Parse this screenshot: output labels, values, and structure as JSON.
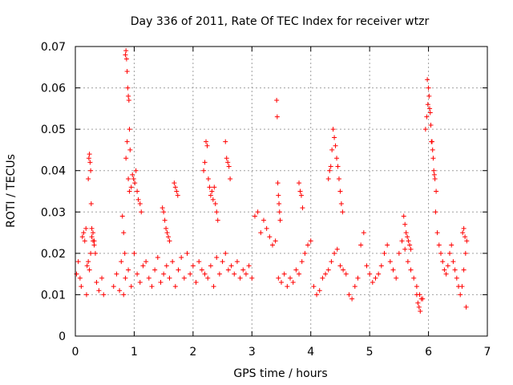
{
  "chart_data": {
    "type": "scatter",
    "title": "Day 336 of 2011, Rate Of TEC Index for receiver wtzr",
    "xlabel": "GPS time / hours",
    "ylabel": "ROTI / TECUs",
    "xlim": [
      0,
      7
    ],
    "ylim": [
      0,
      0.07
    ],
    "x_ticks": [
      0,
      1,
      2,
      3,
      4,
      5,
      6,
      7
    ],
    "y_ticks": [
      0,
      0.01,
      0.02,
      0.03,
      0.04,
      0.05,
      0.06,
      0.07
    ],
    "x_tick_labels": [
      "0",
      "1",
      "2",
      "3",
      "4",
      "5",
      "6",
      "7"
    ],
    "y_tick_labels": [
      "0",
      "0.01",
      "0.02",
      "0.03",
      "0.04",
      "0.05",
      "0.06",
      "0.07"
    ],
    "grid": true,
    "marker": "plus",
    "marker_color": "#ff0000",
    "series": [
      {
        "x": [
          0.02,
          0.05,
          0.08,
          0.1,
          0.12,
          0.14,
          0.16,
          0.18,
          0.19,
          0.2,
          0.22,
          0.24,
          0.26,
          0.28,
          0.3,
          0.32,
          0.34,
          0.36,
          0.4,
          0.45,
          0.48,
          0.22,
          0.23,
          0.24,
          0.25,
          0.26,
          0.27,
          0.28,
          0.3,
          0.32,
          0.85,
          0.86,
          0.87,
          0.88,
          0.89,
          0.9,
          0.91,
          0.92,
          0.93,
          0.8,
          0.82,
          0.84,
          0.86,
          0.88,
          0.9,
          0.92,
          0.95,
          0.97,
          0.99,
          1.01,
          1.03,
          1.05,
          1.07,
          1.1,
          1.12,
          0.65,
          0.7,
          0.75,
          0.78,
          0.82,
          0.85,
          0.9,
          0.95,
          1.0,
          1.05,
          1.1,
          1.15,
          1.2,
          1.25,
          1.3,
          1.35,
          1.4,
          1.45,
          1.5,
          1.55,
          1.6,
          1.65,
          1.7,
          1.75,
          1.8,
          1.85,
          1.9,
          1.95,
          2.0,
          2.05,
          2.1,
          2.15,
          2.2,
          2.25,
          2.3,
          2.35,
          2.4,
          2.45,
          2.5,
          2.55,
          2.6,
          2.65,
          2.7,
          2.75,
          2.8,
          2.85,
          2.9,
          2.95,
          3.0,
          1.48,
          1.5,
          1.52,
          1.54,
          1.56,
          1.58,
          1.6,
          1.68,
          1.7,
          1.72,
          1.74,
          2.18,
          2.2,
          2.22,
          2.24,
          2.26,
          2.28,
          2.3,
          2.32,
          2.34,
          2.36,
          2.38,
          2.4,
          2.42,
          2.55,
          2.57,
          2.59,
          2.61,
          2.63,
          3.05,
          3.1,
          3.15,
          3.2,
          3.25,
          3.3,
          3.35,
          3.4,
          3.45,
          3.5,
          3.55,
          3.6,
          3.65,
          3.7,
          3.75,
          3.8,
          3.85,
          3.9,
          3.95,
          4.0,
          4.05,
          4.1,
          4.15,
          4.2,
          4.25,
          4.3,
          4.35,
          4.4,
          4.45,
          4.5,
          4.55,
          4.6,
          4.65,
          4.7,
          4.75,
          4.8,
          4.85,
          4.9,
          4.95,
          5.0,
          3.42,
          3.43,
          3.44,
          3.45,
          3.46,
          3.47,
          3.48,
          3.8,
          3.82,
          3.84,
          3.86,
          4.3,
          4.32,
          4.34,
          4.36,
          4.38,
          4.4,
          4.42,
          4.44,
          4.46,
          4.48,
          4.5,
          4.52,
          4.54,
          5.05,
          5.1,
          5.15,
          5.2,
          5.25,
          5.3,
          5.35,
          5.4,
          5.45,
          5.5,
          5.55,
          5.6,
          5.65,
          5.7,
          5.75,
          5.8,
          5.85,
          5.9,
          5.58,
          5.6,
          5.62,
          5.64,
          5.66,
          5.68,
          5.7,
          5.95,
          5.97,
          5.99,
          6.01,
          6.03,
          6.05,
          6.07,
          6.09,
          6.11,
          6.13,
          5.98,
          6.0,
          6.02,
          6.04,
          6.06,
          6.08,
          6.1,
          6.12,
          6.15,
          6.18,
          6.21,
          6.24,
          6.27,
          6.3,
          6.33,
          6.36,
          6.39,
          6.42,
          6.45,
          6.48,
          6.51,
          6.54,
          6.57,
          6.6,
          6.63,
          6.65,
          5.8,
          5.82,
          5.84,
          5.86,
          5.88,
          6.58,
          6.6,
          6.62,
          6.64
        ],
        "y": [
          0.015,
          0.018,
          0.014,
          0.012,
          0.024,
          0.025,
          0.023,
          0.026,
          0.01,
          0.017,
          0.018,
          0.016,
          0.02,
          0.024,
          0.023,
          0.022,
          0.02,
          0.013,
          0.011,
          0.014,
          0.01,
          0.038,
          0.043,
          0.044,
          0.042,
          0.04,
          0.032,
          0.026,
          0.025,
          0.023,
          0.068,
          0.069,
          0.067,
          0.064,
          0.06,
          0.058,
          0.057,
          0.05,
          0.045,
          0.029,
          0.025,
          0.02,
          0.043,
          0.047,
          0.038,
          0.035,
          0.036,
          0.039,
          0.038,
          0.037,
          0.04,
          0.035,
          0.033,
          0.032,
          0.03,
          0.012,
          0.015,
          0.011,
          0.018,
          0.01,
          0.014,
          0.016,
          0.012,
          0.02,
          0.015,
          0.013,
          0.017,
          0.018,
          0.014,
          0.012,
          0.016,
          0.019,
          0.013,
          0.015,
          0.017,
          0.014,
          0.018,
          0.012,
          0.016,
          0.019,
          0.014,
          0.02,
          0.015,
          0.017,
          0.013,
          0.018,
          0.016,
          0.015,
          0.014,
          0.017,
          0.012,
          0.019,
          0.015,
          0.018,
          0.02,
          0.016,
          0.017,
          0.015,
          0.018,
          0.014,
          0.016,
          0.015,
          0.017,
          0.014,
          0.031,
          0.03,
          0.028,
          0.026,
          0.025,
          0.024,
          0.023,
          0.037,
          0.036,
          0.035,
          0.034,
          0.04,
          0.042,
          0.047,
          0.046,
          0.038,
          0.036,
          0.034,
          0.035,
          0.033,
          0.036,
          0.032,
          0.03,
          0.028,
          0.047,
          0.043,
          0.042,
          0.041,
          0.038,
          0.029,
          0.03,
          0.025,
          0.028,
          0.026,
          0.024,
          0.022,
          0.023,
          0.014,
          0.013,
          0.015,
          0.012,
          0.014,
          0.013,
          0.016,
          0.015,
          0.018,
          0.02,
          0.022,
          0.023,
          0.012,
          0.01,
          0.011,
          0.014,
          0.015,
          0.016,
          0.018,
          0.02,
          0.021,
          0.017,
          0.016,
          0.015,
          0.01,
          0.009,
          0.012,
          0.014,
          0.022,
          0.025,
          0.017,
          0.015,
          0.057,
          0.053,
          0.037,
          0.034,
          0.032,
          0.03,
          0.028,
          0.037,
          0.035,
          0.034,
          0.031,
          0.038,
          0.04,
          0.041,
          0.045,
          0.05,
          0.048,
          0.046,
          0.043,
          0.041,
          0.038,
          0.035,
          0.032,
          0.03,
          0.013,
          0.014,
          0.015,
          0.017,
          0.02,
          0.022,
          0.018,
          0.016,
          0.014,
          0.02,
          0.023,
          0.021,
          0.018,
          0.016,
          0.014,
          0.012,
          0.01,
          0.009,
          0.029,
          0.027,
          0.025,
          0.024,
          0.023,
          0.022,
          0.021,
          0.05,
          0.053,
          0.056,
          0.058,
          0.054,
          0.047,
          0.045,
          0.04,
          0.038,
          0.035,
          0.062,
          0.06,
          0.055,
          0.051,
          0.047,
          0.043,
          0.039,
          0.03,
          0.025,
          0.022,
          0.02,
          0.018,
          0.016,
          0.015,
          0.017,
          0.02,
          0.022,
          0.018,
          0.016,
          0.014,
          0.012,
          0.01,
          0.012,
          0.016,
          0.02,
          0.023,
          0.01,
          0.008,
          0.007,
          0.006,
          0.009,
          0.025,
          0.026,
          0.024,
          0.007
        ]
      }
    ]
  }
}
